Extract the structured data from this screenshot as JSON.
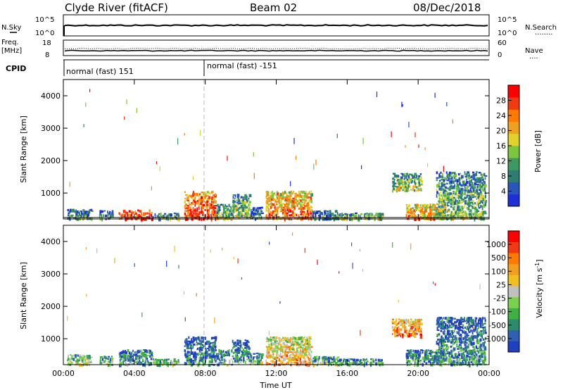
{
  "header": {
    "station": "Clyde River (fitACF)",
    "beam": "Beam 02",
    "date": "08/Dec/2018"
  },
  "panels": {
    "nsky": {
      "left_label": "N.Sky",
      "left_ticks": [
        "10^5",
        "10^0"
      ],
      "right_ticks": [
        "10^5",
        "10^0"
      ],
      "right_label": "N.Search",
      "right_dots": "........"
    },
    "freq": {
      "left_label_1": "Freq.",
      "left_label_2": "[MHz]",
      "left_ticks": [
        "18",
        "8"
      ],
      "right_ticks": [
        "60",
        "0"
      ],
      "right_label": "Nave",
      "right_dots": "...."
    },
    "cpid": {
      "label": "CPID",
      "modes": [
        "normal (fast) 151",
        "normal (fast) -151"
      ]
    }
  },
  "chart_data": [
    {
      "type": "heatmap",
      "title": "",
      "xlabel": "",
      "ylabel": "Slant Range [km]",
      "x_ticks": [
        "00:00",
        "04:00",
        "08:00",
        "12:00",
        "16:00",
        "20:00",
        "00:00"
      ],
      "xlim": [
        0,
        24
      ],
      "ylim": [
        200,
        4500
      ],
      "y_ticks": [
        1000,
        2000,
        3000,
        4000
      ],
      "colorbar": {
        "label": "Power [dB]",
        "ticks": [
          "4",
          "8",
          "12",
          "16",
          "20",
          "24",
          "28"
        ],
        "colors": [
          "#1f2fd8",
          "#2a56b8",
          "#2e7d72",
          "#3d9a5e",
          "#7cc53e",
          "#e0d22a",
          "#f0a020",
          "#ff7a00",
          "#f03a12",
          "#ff0000"
        ]
      },
      "regions": [
        {
          "t0": 0.2,
          "t1": 1.6,
          "r0": 220,
          "r1": 550,
          "level": 0.35
        },
        {
          "t0": 2.0,
          "t1": 2.8,
          "r0": 220,
          "r1": 500,
          "level": 0.3
        },
        {
          "t0": 3.1,
          "t1": 5.0,
          "r0": 220,
          "r1": 520,
          "level": 0.95
        },
        {
          "t0": 5.0,
          "t1": 6.5,
          "r0": 220,
          "r1": 420,
          "level": 0.4
        },
        {
          "t0": 6.8,
          "t1": 8.6,
          "r0": 220,
          "r1": 1100,
          "level": 0.9
        },
        {
          "t0": 8.6,
          "t1": 9.5,
          "r0": 220,
          "r1": 700,
          "level": 0.45
        },
        {
          "t0": 9.5,
          "t1": 10.5,
          "r0": 300,
          "r1": 1000,
          "level": 0.5
        },
        {
          "t0": 10.5,
          "t1": 11.2,
          "r0": 220,
          "r1": 600,
          "level": 0.3
        },
        {
          "t0": 11.4,
          "t1": 14.0,
          "r0": 220,
          "r1": 1100,
          "level": 0.8
        },
        {
          "t0": 14.0,
          "t1": 15.5,
          "r0": 220,
          "r1": 500,
          "level": 0.3
        },
        {
          "t0": 15.5,
          "t1": 18.0,
          "r0": 220,
          "r1": 420,
          "level": 0.45
        },
        {
          "t0": 18.5,
          "t1": 20.2,
          "r0": 1100,
          "r1": 1650,
          "level": 0.5
        },
        {
          "t0": 19.3,
          "t1": 21.5,
          "r0": 220,
          "r1": 700,
          "level": 0.75
        },
        {
          "t0": 21.0,
          "t1": 23.8,
          "r0": 220,
          "r1": 1700,
          "level": 0.45
        }
      ]
    },
    {
      "type": "heatmap",
      "title": "",
      "xlabel": "Time UT",
      "ylabel": "Slant Range [km]",
      "x_ticks": [
        "00:00",
        "04:00",
        "08:00",
        "12:00",
        "16:00",
        "20:00",
        "00:00"
      ],
      "xlim": [
        0,
        24
      ],
      "ylim": [
        200,
        4500
      ],
      "y_ticks": [
        1000,
        2000,
        3000,
        4000
      ],
      "colorbar": {
        "label": "Velocity [m s^-1]",
        "ticks": [
          "1000",
          "500",
          "100",
          "25",
          "-25",
          "-100",
          "-500",
          "-1000"
        ],
        "colors": [
          "#2040c0",
          "#3060b0",
          "#2e8a6a",
          "#40b040",
          "#7cd050",
          "#c0c0c0",
          "#f0c020",
          "#f0a020",
          "#ff7a00",
          "#f03a12",
          "#ff0000"
        ]
      },
      "regions": [
        {
          "t0": 0.2,
          "t1": 1.6,
          "r0": 220,
          "r1": 550,
          "level": 0.5
        },
        {
          "t0": 2.0,
          "t1": 2.8,
          "r0": 220,
          "r1": 500,
          "level": 0.4
        },
        {
          "t0": 3.1,
          "t1": 5.0,
          "r0": 220,
          "r1": 700,
          "level": 0.3
        },
        {
          "t0": 5.0,
          "t1": 6.5,
          "r0": 220,
          "r1": 420,
          "level": 0.4
        },
        {
          "t0": 6.8,
          "t1": 8.6,
          "r0": 220,
          "r1": 1100,
          "level": 0.25
        },
        {
          "t0": 8.6,
          "t1": 9.5,
          "r0": 220,
          "r1": 700,
          "level": 0.35
        },
        {
          "t0": 9.5,
          "t1": 10.5,
          "r0": 300,
          "r1": 1000,
          "level": 0.3
        },
        {
          "t0": 10.5,
          "t1": 11.2,
          "r0": 220,
          "r1": 600,
          "level": 0.4
        },
        {
          "t0": 11.4,
          "t1": 14.0,
          "r0": 220,
          "r1": 1100,
          "level": 0.7
        },
        {
          "t0": 14.0,
          "t1": 15.5,
          "r0": 220,
          "r1": 500,
          "level": 0.4
        },
        {
          "t0": 15.5,
          "t1": 18.0,
          "r0": 220,
          "r1": 420,
          "level": 0.35
        },
        {
          "t0": 18.5,
          "t1": 20.2,
          "r0": 1100,
          "r1": 1650,
          "level": 0.8
        },
        {
          "t0": 19.3,
          "t1": 21.5,
          "r0": 220,
          "r1": 700,
          "level": 0.3
        },
        {
          "t0": 21.0,
          "t1": 23.8,
          "r0": 220,
          "r1": 1700,
          "level": 0.3
        }
      ]
    }
  ]
}
